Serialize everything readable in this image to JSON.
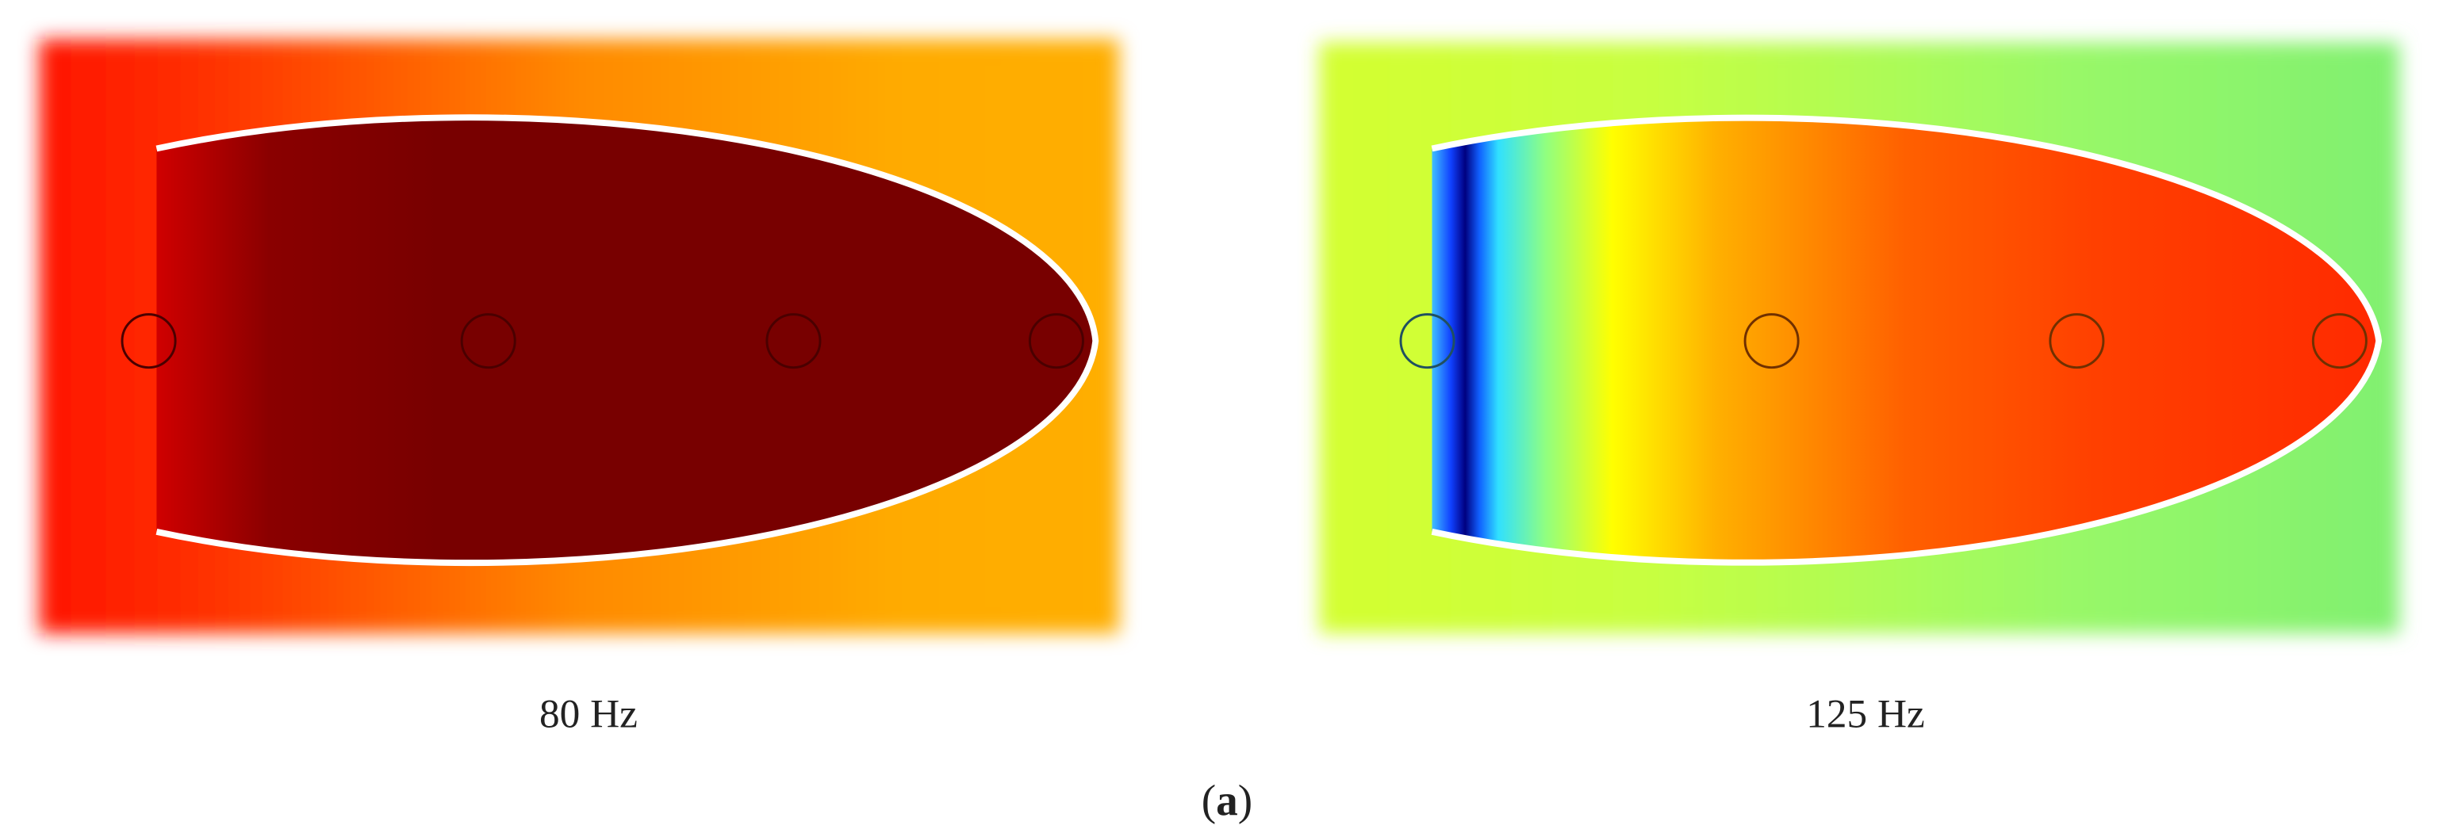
{
  "panels": [
    {
      "label": "80 Hz"
    },
    {
      "label": "125 Hz"
    }
  ],
  "caption": {
    "open": "(",
    "letter": "a",
    "close": ")"
  }
}
